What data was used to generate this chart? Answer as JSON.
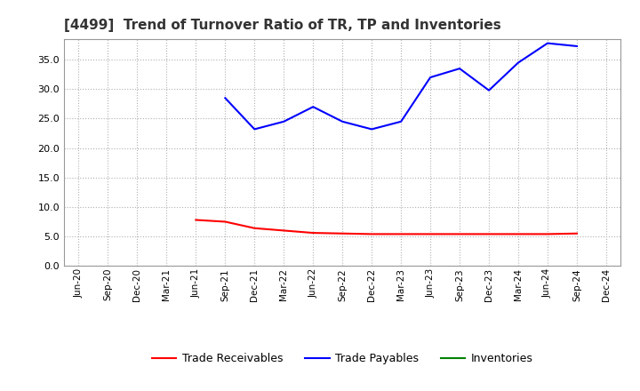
{
  "title": "[4499]  Trend of Turnover Ratio of TR, TP and Inventories",
  "x_labels": [
    "Jun-20",
    "Sep-20",
    "Dec-20",
    "Mar-21",
    "Jun-21",
    "Sep-21",
    "Dec-21",
    "Mar-22",
    "Jun-22",
    "Sep-22",
    "Dec-22",
    "Mar-23",
    "Jun-23",
    "Sep-23",
    "Dec-23",
    "Mar-24",
    "Jun-24",
    "Sep-24",
    "Dec-24"
  ],
  "trade_receivables": [
    null,
    null,
    null,
    null,
    7.8,
    7.5,
    6.4,
    6.0,
    5.6,
    5.5,
    5.4,
    5.4,
    5.4,
    5.4,
    5.4,
    5.4,
    5.4,
    5.5,
    null
  ],
  "trade_payables": [
    null,
    null,
    null,
    null,
    null,
    28.5,
    23.2,
    24.5,
    27.0,
    24.5,
    23.2,
    24.5,
    32.0,
    33.5,
    29.8,
    34.5,
    37.8,
    37.3,
    null
  ],
  "inventories": [
    null,
    null,
    null,
    null,
    null,
    null,
    null,
    null,
    null,
    null,
    null,
    null,
    null,
    null,
    null,
    null,
    null,
    null,
    null
  ],
  "tr_color": "#ff0000",
  "tp_color": "#0000ff",
  "inv_color": "#008000",
  "bg_color": "#ffffff",
  "plot_bg_color": "#ffffff",
  "grid_color": "#b0b0b0",
  "ylim": [
    0.0,
    38.5
  ],
  "yticks": [
    0.0,
    5.0,
    10.0,
    15.0,
    20.0,
    25.0,
    30.0,
    35.0
  ],
  "legend_labels": [
    "Trade Receivables",
    "Trade Payables",
    "Inventories"
  ]
}
